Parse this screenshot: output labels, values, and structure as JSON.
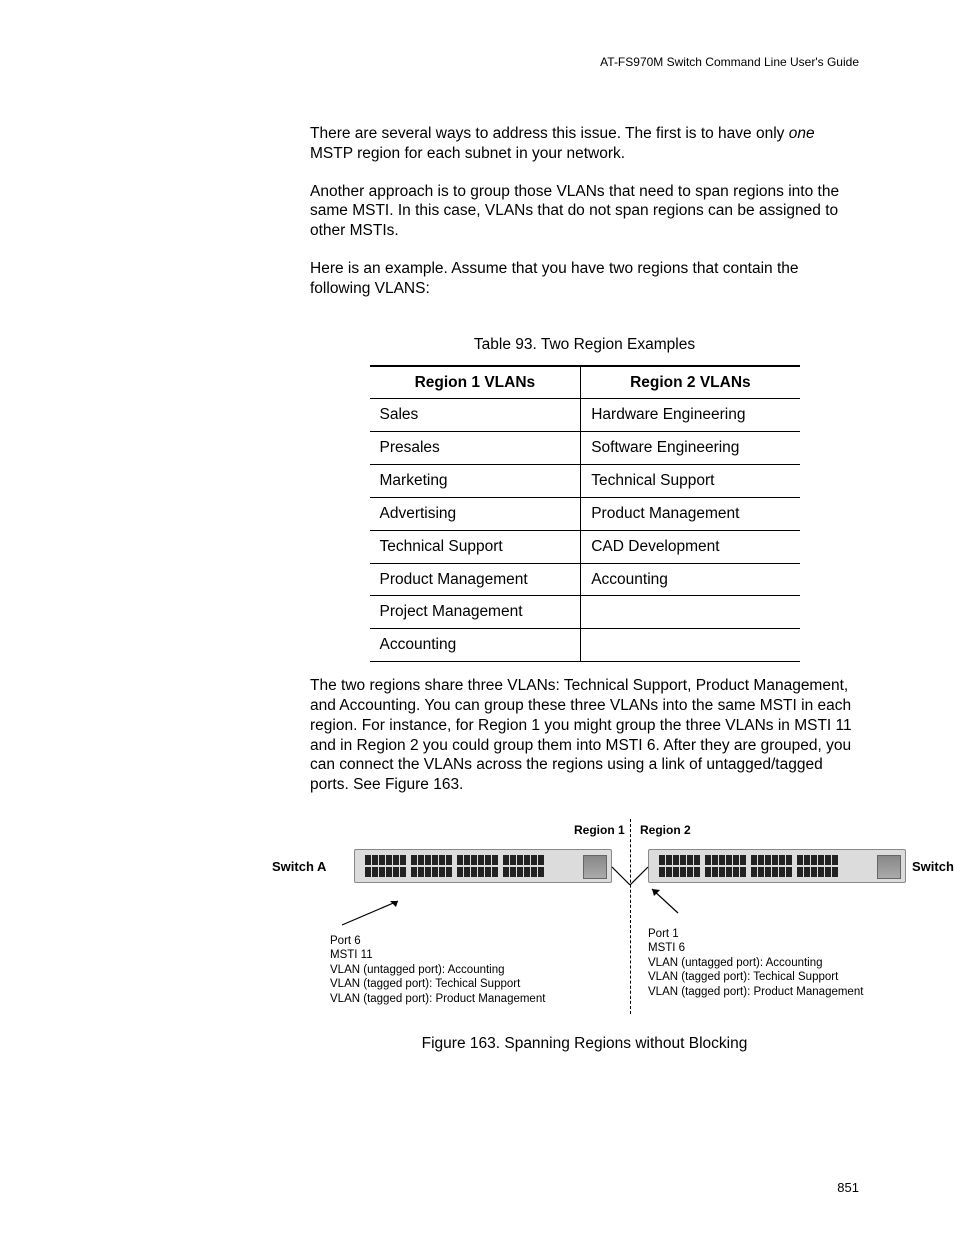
{
  "header_text": "AT-FS970M Switch Command Line User's Guide",
  "para1_a": "There are several ways to address this issue. The first is to have only ",
  "para1_b": "one",
  "para1_c": " MSTP region for each subnet in your network.",
  "para2": "Another approach is to group those VLANs that need to span regions into the same MSTI. In this case, VLANs that do not span regions can be assigned to other MSTIs.",
  "para3": "Here is an example. Assume that you have two regions that contain the following VLANS:",
  "table_caption": "Table 93. Two Region Examples",
  "table": {
    "columns": [
      "Region 1 VLANs",
      "Region 2 VLANs"
    ],
    "rows": [
      [
        "Sales",
        "Hardware Engineering"
      ],
      [
        "Presales",
        "Software Engineering"
      ],
      [
        "Marketing",
        "Technical Support"
      ],
      [
        "Advertising",
        "Product Management"
      ],
      [
        "Technical Support",
        "CAD Development"
      ],
      [
        "Product Management",
        "Accounting"
      ],
      [
        "Project Management",
        ""
      ],
      [
        "Accounting",
        ""
      ]
    ]
  },
  "para4": "The two regions share three VLANs: Technical Support, Product Management, and Accounting. You can group these three VLANs into the same MSTI in each region. For instance, for Region 1 you might group the three VLANs in MSTI 11 and in Region 2 you could group them into MSTI 6. After they are grouped, you can connect the VLANs across the regions using a link of untagged/tagged ports. See Figure 163.",
  "figure": {
    "region1_label": "Region 1",
    "region2_label": "Region 2",
    "switch_a": "Switch A",
    "switch_b": "Switch B",
    "left_lines": [
      "Port 6",
      "MSTI 11",
      "VLAN (untagged port): Accounting",
      "VLAN (tagged port): Techical Support",
      "VLAN (tagged port): Product Management"
    ],
    "right_lines": [
      "Port 1",
      "MSTI 6",
      "VLAN (untagged port): Accounting",
      "VLAN (tagged port): Techical Support",
      "VLAN (tagged port): Product Management"
    ]
  },
  "figure_caption": "Figure 163. Spanning Regions without Blocking",
  "page_number": "851"
}
